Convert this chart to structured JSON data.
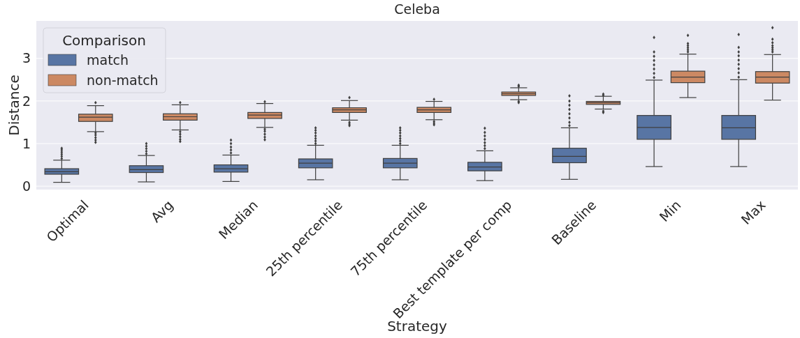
{
  "chart_data": {
    "type": "box",
    "title": "Celeba",
    "xlabel": "Strategy",
    "ylabel": "Distance",
    "legend_title": "Comparison",
    "legend": "top left",
    "grid": "y",
    "categories": [
      "Optimal",
      "Avg",
      "Median",
      "25th percentile",
      "75th percentile",
      "Best template per comp",
      "Baseline",
      "Min",
      "Max"
    ],
    "ylim": [
      -0.08,
      3.88
    ],
    "yticks": [
      0,
      1,
      2,
      3
    ],
    "series": [
      {
        "name": "match",
        "color": "#5875a4",
        "boxes": [
          {
            "low": 0.09,
            "q1": 0.28,
            "median": 0.34,
            "q3": 0.41,
            "high": 0.61,
            "outliers": [
              0.65,
              0.7,
              0.75,
              0.8,
              0.85,
              0.89
            ]
          },
          {
            "low": 0.1,
            "q1": 0.32,
            "median": 0.39,
            "q3": 0.48,
            "high": 0.72,
            "outliers": [
              0.76,
              0.82,
              0.88,
              0.94,
              1.0
            ]
          },
          {
            "low": 0.11,
            "q1": 0.33,
            "median": 0.41,
            "q3": 0.5,
            "high": 0.73,
            "outliers": [
              0.78,
              0.85,
              0.92,
              1.0,
              1.08
            ]
          },
          {
            "low": 0.15,
            "q1": 0.43,
            "median": 0.54,
            "q3": 0.64,
            "high": 0.96,
            "outliers": [
              1.0,
              1.06,
              1.12,
              1.18,
              1.25,
              1.31,
              1.37
            ]
          },
          {
            "low": 0.15,
            "q1": 0.43,
            "median": 0.54,
            "q3": 0.65,
            "high": 0.96,
            "outliers": [
              1.0,
              1.06,
              1.12,
              1.18,
              1.25,
              1.31,
              1.37
            ]
          },
          {
            "low": 0.13,
            "q1": 0.36,
            "median": 0.45,
            "q3": 0.56,
            "high": 0.83,
            "outliers": [
              0.88,
              0.95,
              1.02,
              1.1,
              1.18,
              1.26,
              1.36
            ]
          },
          {
            "low": 0.16,
            "q1": 0.55,
            "median": 0.7,
            "q3": 0.89,
            "high": 1.37,
            "outliers": [
              1.42,
              1.5,
              1.6,
              1.7,
              1.8,
              1.9,
              2.0,
              2.12
            ]
          },
          {
            "low": 0.46,
            "q1": 1.1,
            "median": 1.38,
            "q3": 1.66,
            "high": 2.49,
            "outliers": [
              2.55,
              2.65,
              2.75,
              2.85,
              2.95,
              3.05,
              3.15,
              3.49
            ]
          },
          {
            "low": 0.46,
            "q1": 1.1,
            "median": 1.37,
            "q3": 1.66,
            "high": 2.5,
            "outliers": [
              2.56,
              2.66,
              2.76,
              2.86,
              2.96,
              3.06,
              3.15,
              3.26,
              3.56
            ]
          }
        ]
      },
      {
        "name": "non-match",
        "color": "#cc8963",
        "boxes": [
          {
            "low": 1.28,
            "q1": 1.52,
            "median": 1.62,
            "q3": 1.69,
            "high": 1.89,
            "outliers": [
              1.03,
              1.08,
              1.14,
              1.2,
              1.25,
              1.96
            ]
          },
          {
            "low": 1.32,
            "q1": 1.55,
            "median": 1.63,
            "q3": 1.7,
            "high": 1.91,
            "outliers": [
              1.05,
              1.1,
              1.16,
              1.22,
              1.28,
              1.96
            ]
          },
          {
            "low": 1.38,
            "q1": 1.59,
            "median": 1.67,
            "q3": 1.73,
            "high": 1.94,
            "outliers": [
              1.09,
              1.15,
              1.22,
              1.29,
              1.34,
              1.98
            ]
          },
          {
            "low": 1.55,
            "q1": 1.73,
            "median": 1.79,
            "q3": 1.84,
            "high": 2.01,
            "outliers": [
              1.42,
              1.46,
              1.5,
              2.08
            ]
          },
          {
            "low": 1.56,
            "q1": 1.73,
            "median": 1.79,
            "q3": 1.85,
            "high": 1.99,
            "outliers": [
              1.44,
              1.48,
              1.52,
              2.04
            ]
          },
          {
            "low": 2.03,
            "q1": 2.13,
            "median": 2.17,
            "q3": 2.21,
            "high": 2.31,
            "outliers": [
              1.96,
              1.99,
              2.34,
              2.37
            ]
          },
          {
            "low": 1.81,
            "q1": 1.92,
            "median": 1.96,
            "q3": 1.99,
            "high": 2.11,
            "outliers": [
              1.73,
              1.76,
              2.13,
              2.16
            ]
          },
          {
            "low": 2.08,
            "q1": 2.43,
            "median": 2.56,
            "q3": 2.7,
            "high": 3.1,
            "outliers": [
              3.15,
              3.2,
              3.25,
              3.3,
              3.35,
              3.54
            ]
          },
          {
            "low": 2.02,
            "q1": 2.42,
            "median": 2.56,
            "q3": 2.69,
            "high": 3.09,
            "outliers": [
              3.15,
              3.2,
              3.25,
              3.3,
              3.37,
              3.45,
              3.72
            ]
          }
        ]
      }
    ]
  }
}
